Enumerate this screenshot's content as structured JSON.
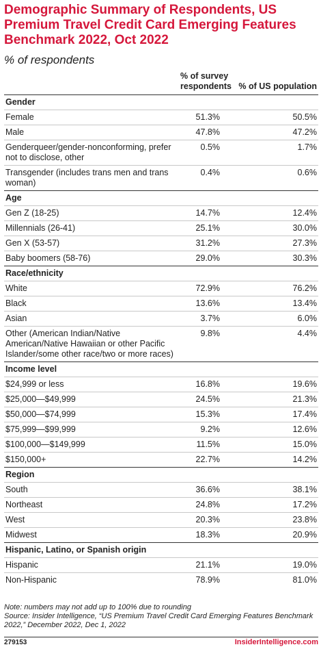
{
  "header": {
    "title": "Demographic Summary of Respondents, US Premium Travel Credit Card Emerging Features Benchmark 2022, Oct 2022",
    "subtitle": "% of respondents"
  },
  "table": {
    "columns": [
      "% of survey respondents",
      "% of US population"
    ],
    "sections": [
      {
        "title": "Gender",
        "rows": [
          [
            "Female",
            "51.3%",
            "50.5%"
          ],
          [
            "Male",
            "47.8%",
            "47.2%"
          ],
          [
            "Genderqueer/gender-nonconforming, prefer not to disclose, other",
            "0.5%",
            "1.7%"
          ],
          [
            "Transgender (includes trans men and trans woman)",
            "0.4%",
            "0.6%"
          ]
        ]
      },
      {
        "title": "Age",
        "rows": [
          [
            "Gen Z (18-25)",
            "14.7%",
            "12.4%"
          ],
          [
            "Millennials (26-41)",
            "25.1%",
            "30.0%"
          ],
          [
            "Gen X (53-57)",
            "31.2%",
            "27.3%"
          ],
          [
            "Baby boomers (58-76)",
            "29.0%",
            "30.3%"
          ]
        ]
      },
      {
        "title": "Race/ethnicity",
        "rows": [
          [
            "White",
            "72.9%",
            "76.2%"
          ],
          [
            "Black",
            "13.6%",
            "13.4%"
          ],
          [
            "Asian",
            "3.7%",
            "6.0%"
          ],
          [
            "Other (American Indian/Native American/Native Hawaiian or other Pacific Islander/some other race/two or more races)",
            "9.8%",
            "4.4%"
          ]
        ]
      },
      {
        "title": "Income level",
        "rows": [
          [
            "$24,999 or less",
            "16.8%",
            "19.6%"
          ],
          [
            "$25,000—$49,999",
            "24.5%",
            "21.3%"
          ],
          [
            "$50,000—$74,999",
            "15.3%",
            "17.4%"
          ],
          [
            "$75,999—$99,999",
            "9.2%",
            "12.6%"
          ],
          [
            "$100,000—$149,999",
            "11.5%",
            "15.0%"
          ],
          [
            "$150,000+",
            "22.7%",
            "14.2%"
          ]
        ]
      },
      {
        "title": "Region",
        "rows": [
          [
            "South",
            "36.6%",
            "38.1%"
          ],
          [
            "Northeast",
            "24.8%",
            "17.2%"
          ],
          [
            "West",
            "20.3%",
            "23.8%"
          ],
          [
            "Midwest",
            "18.3%",
            "20.9%"
          ]
        ]
      },
      {
        "title": "Hispanic, Latino, or Spanish origin",
        "rows": [
          [
            "Hispanic",
            "21.1%",
            "19.0%"
          ],
          [
            "Non-Hispanic",
            "78.9%",
            "81.0%"
          ]
        ]
      }
    ]
  },
  "footer": {
    "note": "Note: numbers may not add up to 100% due to rounding",
    "source": "Source: Insider Intelligence, “US Premium Travel Credit Card Emerging Features Benchmark 2022,” December 2022, Dec 1, 2022",
    "id": "279153",
    "brand": "InsiderIntelligence.com"
  }
}
